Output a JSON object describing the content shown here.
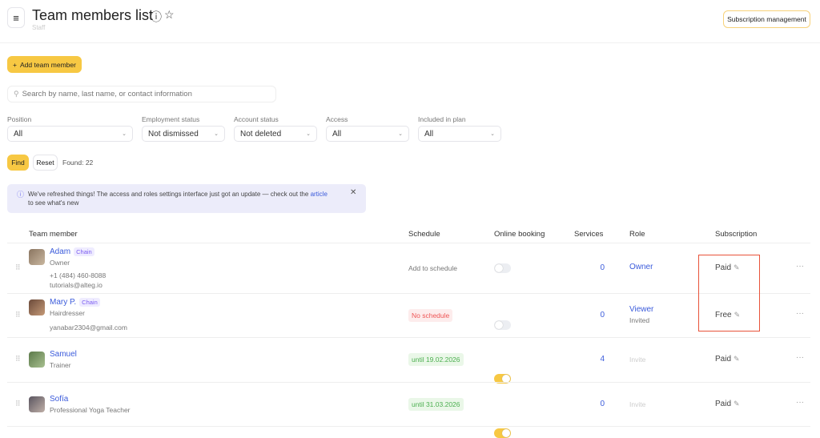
{
  "header": {
    "title": "Team members list",
    "subtitle": "Staff",
    "subscription_button": "Subscription management",
    "menu_icon": "hamburger-icon",
    "info_icon": "info-icon",
    "star_icon": "star-icon"
  },
  "toolbar": {
    "add_button": "Add team member",
    "search_placeholder": "Search by name, last name, or contact information"
  },
  "filters": [
    {
      "label": "Position",
      "value": "All"
    },
    {
      "label": "Employment status",
      "value": "Not dismissed"
    },
    {
      "label": "Account status",
      "value": "Not deleted"
    },
    {
      "label": "Access",
      "value": "All"
    },
    {
      "label": "Included in plan",
      "value": "All"
    }
  ],
  "actions": {
    "find": "Find",
    "reset": "Reset",
    "found": "Found: 22"
  },
  "banner": {
    "text": "We've refreshed things! The access and roles settings interface just got an update — check out the",
    "link": "article",
    "text_after": " to see what's new"
  },
  "table": {
    "headers": [
      "Team member",
      "Schedule",
      "Online booking",
      "Services",
      "Role",
      "Subscription"
    ],
    "rows": [
      {
        "name": "Adam",
        "badge": "Chain",
        "position": "Owner",
        "phone": "+1 (484) 460-8088",
        "email": "tutorials@alteg.io",
        "schedule": "Add to schedule",
        "schedule_type": "plain",
        "online_booking": false,
        "services": "0",
        "role": "Owner",
        "role_note": "",
        "subscription": "Paid"
      },
      {
        "name": "Mary P.",
        "badge": "Chain",
        "position": "Hairdresser",
        "phone": "",
        "email": "yanabar2304@gmail.com",
        "schedule": "No schedule",
        "schedule_type": "red",
        "online_booking": false,
        "services": "0",
        "role": "Viewer",
        "role_note": "Invited",
        "subscription": "Free"
      },
      {
        "name": "Samuel",
        "badge": "",
        "position": "Trainer",
        "phone": "",
        "email": "",
        "schedule": "until 19.02.2026",
        "schedule_type": "green",
        "online_booking": true,
        "services": "4",
        "role": "",
        "role_note": "Invite",
        "subscription": "Paid"
      },
      {
        "name": "Sofía",
        "badge": "",
        "position": "Professional Yoga Teacher",
        "phone": "",
        "email": "",
        "schedule": "until 31.03.2026",
        "schedule_type": "green",
        "online_booking": true,
        "services": "0",
        "role": "",
        "role_note": "Invite",
        "subscription": "Paid"
      }
    ]
  },
  "colors": {
    "accent": "#f7c843",
    "link": "#3b5bdb",
    "highlight_box": "#e8533a"
  }
}
